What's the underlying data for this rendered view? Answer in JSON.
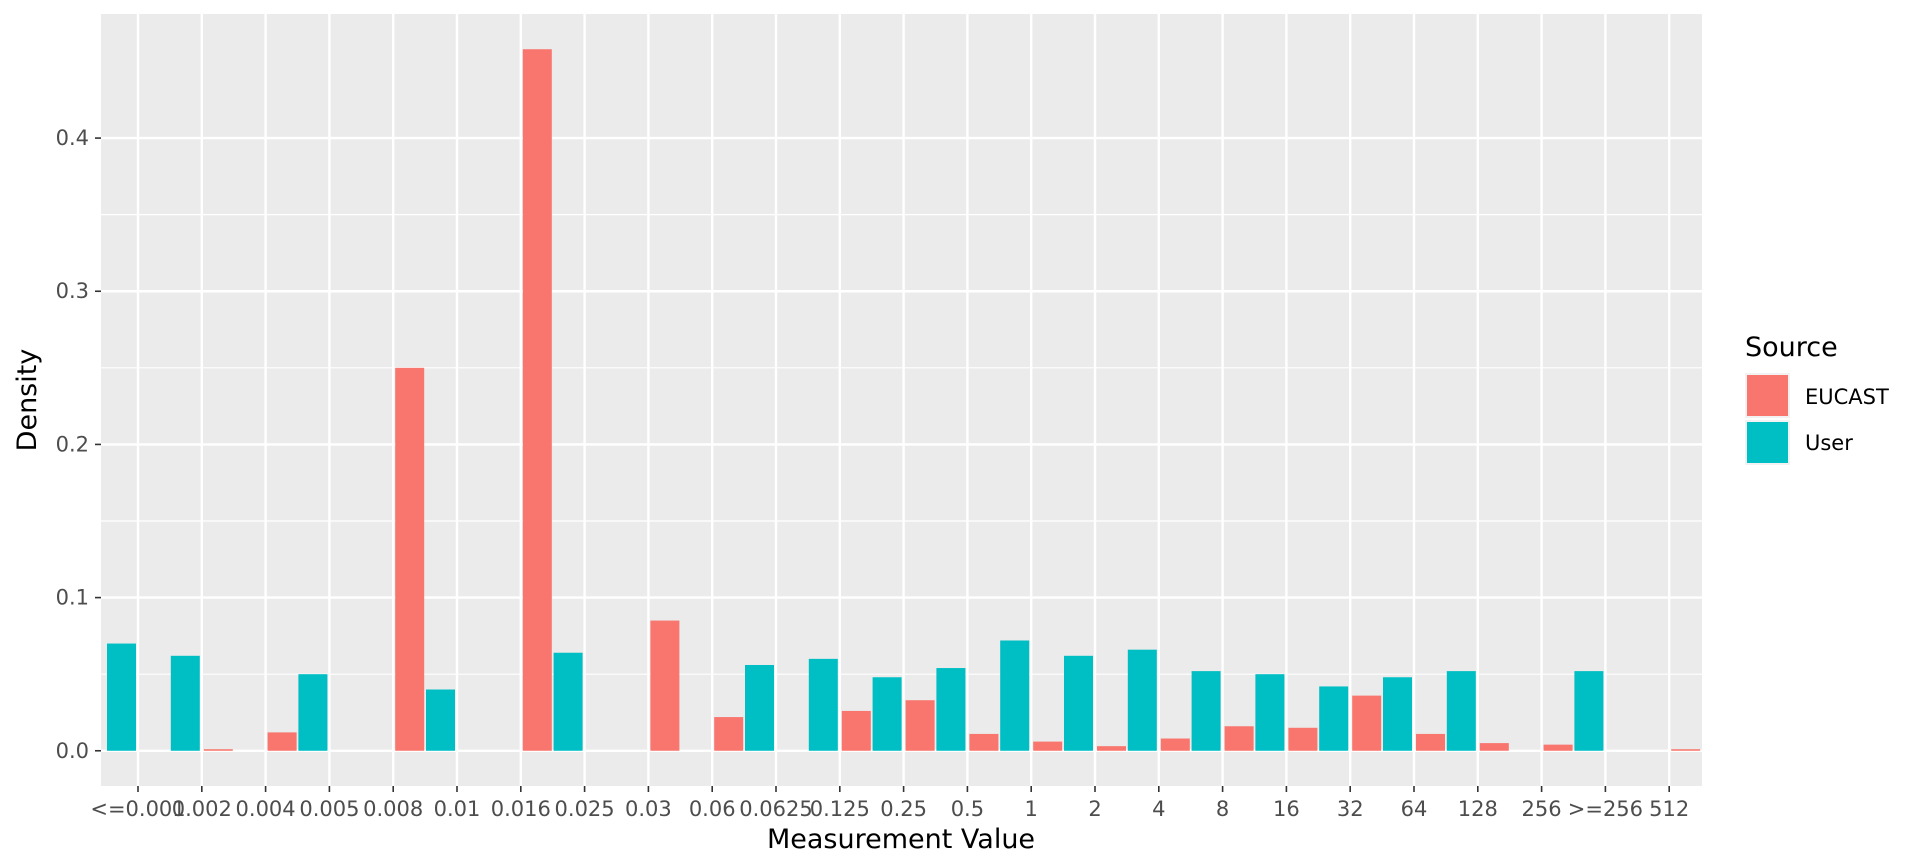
{
  "chart_data": {
    "type": "bar",
    "xlabel": "Measurement Value",
    "ylabel": "Density",
    "ylim": [
      -0.023,
      0.481
    ],
    "yticks": [
      0.0,
      0.1,
      0.2,
      0.3,
      0.4
    ],
    "ytick_labels": [
      "0.0",
      "0.1",
      "0.2",
      "0.3",
      "0.4"
    ],
    "grid": true,
    "legend": {
      "title": "Source",
      "position": "right"
    },
    "categories": [
      "<=0.001",
      "0.002",
      "0.004",
      "0.005",
      "0.008",
      "0.01",
      "0.016",
      "0.025",
      "0.03",
      "0.06",
      "0.0625",
      "0.125",
      "0.25",
      "0.5",
      "1",
      "2",
      "4",
      "8",
      "16",
      "32",
      "64",
      "128",
      "256",
      ">=256",
      "512"
    ],
    "series": [
      {
        "name": "EUCAST",
        "color": "#F8766D",
        "values": [
          null,
          0.001,
          0.012,
          null,
          0.25,
          null,
          0.458,
          null,
          0.085,
          0.022,
          null,
          0.026,
          0.033,
          0.011,
          0.006,
          0.003,
          0.008,
          0.016,
          0.015,
          0.036,
          0.011,
          0.005,
          0.004,
          null,
          0.001
        ]
      },
      {
        "name": "User",
        "color": "#00BFC4",
        "values": [
          0.07,
          0.062,
          null,
          0.05,
          null,
          0.04,
          null,
          0.064,
          null,
          null,
          0.056,
          0.06,
          0.048,
          0.054,
          0.072,
          0.062,
          0.066,
          0.052,
          0.05,
          0.042,
          0.048,
          0.052,
          null,
          0.052,
          null
        ]
      }
    ]
  }
}
